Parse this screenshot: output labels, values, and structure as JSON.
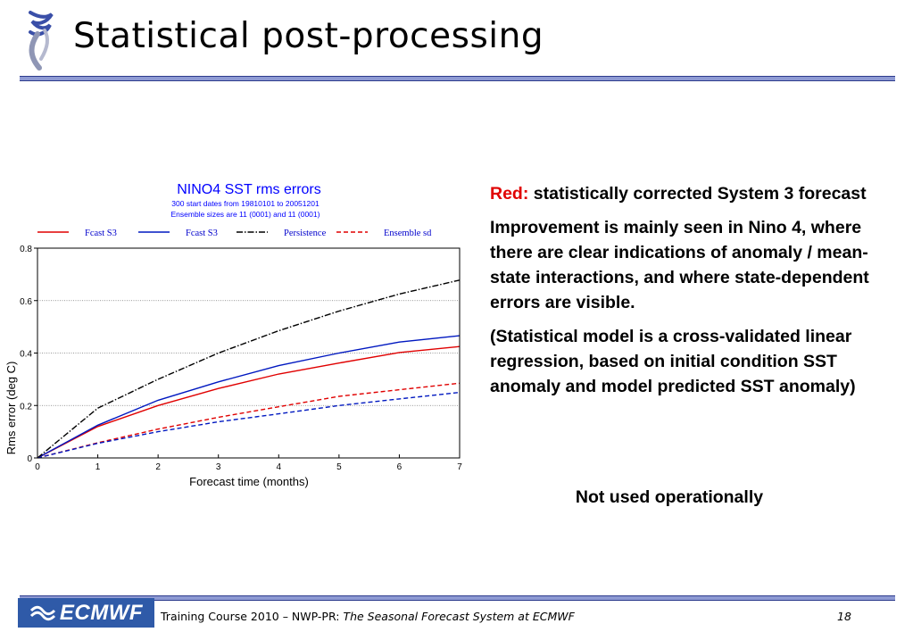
{
  "slide": {
    "title": "Statistical post-processing",
    "right": {
      "para1_red": "Red:",
      "para1_rest": " statistically corrected System 3 forecast",
      "para2": "Improvement is mainly seen in Nino 4, where there are clear indications of anomaly / mean-state interactions, and where state-dependent errors are visible.",
      "para3": "(Statistical model is a cross-validated linear regression, based on initial condition SST anomaly and model predicted SST anomaly)"
    },
    "note": "Not used operationally",
    "footer": {
      "logo_text": "ECMWF",
      "course": "Training Course 2010 – NWP-PR: ",
      "course_title": "The Seasonal Forecast System at ECMWF",
      "page": "18"
    }
  },
  "chart_data": {
    "type": "line",
    "title": "NINO4 SST rms errors",
    "subtitle1": "300 start dates from 19810101 to 20051201",
    "subtitle2": "Ensemble sizes are 11 (0001)  and 11 (0001)",
    "xlabel": "Forecast time (months)",
    "ylabel": "Rms error (deg C)",
    "xlim": [
      0,
      7
    ],
    "ylim": [
      0,
      0.8
    ],
    "x_ticks": [
      "0",
      "1",
      "2",
      "3",
      "4",
      "5",
      "6",
      "7"
    ],
    "y_ticks": [
      "0",
      "0.2",
      "0.4",
      "0.6",
      "0.8"
    ],
    "grid": "horizontal dotted",
    "legend_position": "top",
    "x": [
      0,
      1,
      2,
      3,
      4,
      5,
      6,
      7
    ],
    "series": [
      {
        "name": "Fcast S3",
        "color": "#e00000",
        "style": "solid",
        "values": [
          0,
          0.12,
          0.2,
          0.265,
          0.32,
          0.362,
          0.402,
          0.425
        ]
      },
      {
        "name": "Fcast S3",
        "color": "#0018c0",
        "style": "solid",
        "values": [
          0,
          0.125,
          0.22,
          0.29,
          0.352,
          0.4,
          0.442,
          0.466
        ]
      },
      {
        "name": "Persistence",
        "color": "#000000",
        "style": "dashdot",
        "values": [
          0,
          0.19,
          0.3,
          0.4,
          0.485,
          0.56,
          0.625,
          0.678
        ]
      },
      {
        "name": "Ensemble sd",
        "color": "#e00000",
        "style": "dashed",
        "values": [
          0,
          0.058,
          0.11,
          0.155,
          0.195,
          0.235,
          0.26,
          0.285
        ]
      },
      {
        "name": "Ensemble sd",
        "color": "#0018c0",
        "style": "dashed",
        "values": [
          0,
          0.056,
          0.1,
          0.138,
          0.168,
          0.2,
          0.225,
          0.25
        ]
      }
    ],
    "legend": [
      {
        "label": "Fcast S3",
        "color": "#e00000",
        "style": "solid"
      },
      {
        "label": "Fcast S3",
        "color": "#0018c0",
        "style": "solid"
      },
      {
        "label": "Persistence",
        "color": "#000000",
        "style": "dashdot"
      },
      {
        "label": "Ensemble sd",
        "color": "#e00000",
        "style": "dashed"
      }
    ]
  }
}
